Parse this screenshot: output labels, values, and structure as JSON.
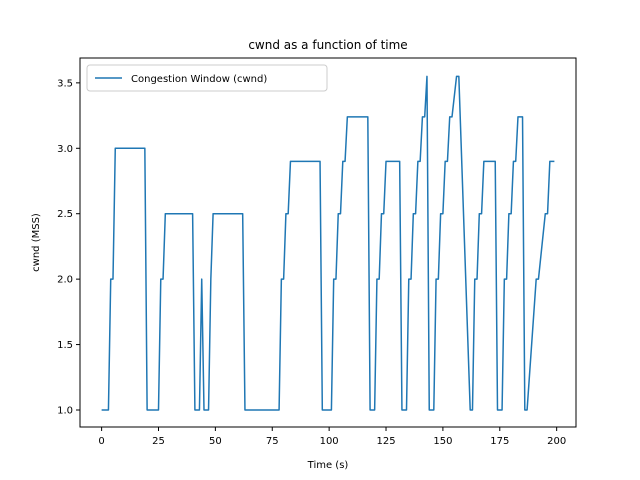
{
  "chart_data": {
    "type": "line",
    "title": "cwnd as a function of time",
    "xlabel": "Time (s)",
    "ylabel": "cwnd (MSS)",
    "xlim": [
      -9.5,
      208.5
    ],
    "ylim": [
      0.87,
      3.69
    ],
    "xticks": [
      0,
      25,
      50,
      75,
      100,
      125,
      150,
      175,
      200
    ],
    "yticks": [
      1.0,
      1.5,
      2.0,
      2.5,
      3.0,
      3.5
    ],
    "grid": false,
    "legend_position": "top-left",
    "series": [
      {
        "name": "Congestion Window (cwnd)",
        "color": "#1f77b4",
        "x": [
          0,
          3,
          4,
          5,
          6,
          19,
          20,
          25,
          26,
          27,
          28,
          40,
          41,
          43,
          44,
          45,
          47,
          48,
          49,
          62,
          63,
          78,
          79,
          80,
          81,
          82,
          83,
          96,
          97,
          101,
          102,
          103,
          104,
          105,
          106,
          107,
          108,
          109,
          117,
          118,
          120,
          121,
          122,
          123,
          124,
          125,
          126,
          127,
          131,
          132,
          134,
          135,
          136,
          137,
          138,
          139,
          140,
          141,
          142,
          143,
          144,
          146,
          147,
          148,
          149,
          150,
          151,
          152,
          153,
          154,
          156,
          157,
          162,
          163,
          164,
          165,
          166,
          167,
          168,
          173,
          174,
          176,
          177,
          178,
          179,
          180,
          181,
          182,
          183,
          184,
          185,
          186,
          187,
          191,
          192,
          195,
          196,
          197,
          198,
          199
        ],
        "y": [
          1.0,
          1.0,
          2.0,
          2.0,
          3.0,
          3.0,
          1.0,
          1.0,
          2.0,
          2.0,
          2.5,
          2.5,
          1.0,
          1.0,
          2.0,
          1.0,
          1.0,
          2.0,
          2.5,
          2.5,
          1.0,
          1.0,
          2.0,
          2.0,
          2.5,
          2.5,
          2.9,
          2.9,
          1.0,
          1.0,
          2.0,
          2.0,
          2.5,
          2.5,
          2.9,
          2.9,
          3.24,
          3.24,
          3.24,
          1.0,
          1.0,
          2.0,
          2.0,
          2.5,
          2.5,
          2.9,
          2.9,
          2.9,
          2.9,
          1.0,
          1.0,
          2.0,
          2.0,
          2.5,
          2.5,
          2.9,
          2.9,
          3.24,
          3.24,
          3.55,
          1.0,
          1.0,
          2.0,
          2.0,
          2.5,
          2.5,
          2.9,
          2.9,
          3.24,
          3.24,
          3.55,
          3.55,
          1.0,
          1.0,
          2.0,
          2.0,
          2.5,
          2.5,
          2.9,
          2.9,
          1.0,
          1.0,
          2.0,
          2.0,
          2.5,
          2.5,
          2.9,
          2.9,
          3.24,
          3.24,
          3.24,
          1.0,
          1.0,
          2.0,
          2.0,
          2.5,
          2.5,
          2.9,
          2.9,
          2.9
        ]
      }
    ]
  }
}
